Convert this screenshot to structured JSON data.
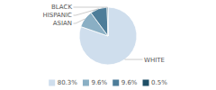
{
  "chart_data": {
    "type": "pie",
    "categories": [
      "WHITE",
      "ASIAN",
      "HISPANIC",
      "BLACK"
    ],
    "values": [
      80.3,
      9.6,
      9.6,
      0.5
    ],
    "value_labels": [
      "80.3%",
      "9.6%",
      "9.6%",
      "0.5%"
    ],
    "colors": [
      "#cfdeed",
      "#8aafc4",
      "#4d7d99",
      "#1e4f66"
    ],
    "legend": "bottom"
  }
}
